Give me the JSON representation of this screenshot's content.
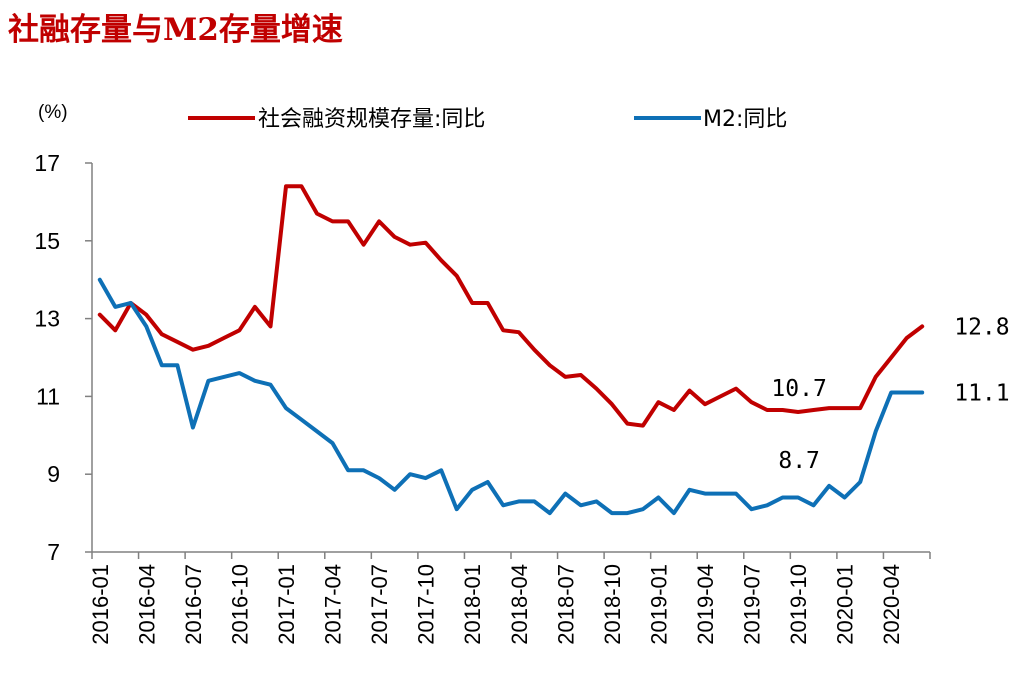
{
  "chart_data": {
    "type": "line",
    "title": "社融存量与M2存量增速",
    "unit": "(%)",
    "xlabel": "",
    "ylabel": "(%)",
    "ylim": [
      7,
      17
    ],
    "yticks": [
      7,
      9,
      11,
      13,
      15,
      17
    ],
    "grid": false,
    "legend_position": "top",
    "colors": {
      "title": "#c00000",
      "series1": "#c00000",
      "series2": "#0e70b6",
      "axis": "#808080"
    },
    "x": [
      "2016-01",
      "2016-02",
      "2016-03",
      "2016-04",
      "2016-05",
      "2016-06",
      "2016-07",
      "2016-08",
      "2016-09",
      "2016-10",
      "2016-11",
      "2016-12",
      "2017-01",
      "2017-02",
      "2017-03",
      "2017-04",
      "2017-05",
      "2017-06",
      "2017-07",
      "2017-08",
      "2017-09",
      "2017-10",
      "2017-11",
      "2017-12",
      "2018-01",
      "2018-02",
      "2018-03",
      "2018-04",
      "2018-05",
      "2018-06",
      "2018-07",
      "2018-08",
      "2018-09",
      "2018-10",
      "2018-11",
      "2018-12",
      "2019-01",
      "2019-02",
      "2019-03",
      "2019-04",
      "2019-05",
      "2019-06",
      "2019-07",
      "2019-08",
      "2019-09",
      "2019-10",
      "2019-11",
      "2019-12",
      "2020-01",
      "2020-02",
      "2020-03",
      "2020-04",
      "2020-05",
      "2020-06"
    ],
    "xtick_labels": [
      "2016-01",
      "2016-04",
      "2016-07",
      "2016-10",
      "2017-01",
      "2017-04",
      "2017-07",
      "2017-10",
      "2018-01",
      "2018-04",
      "2018-07",
      "2018-10",
      "2019-01",
      "2019-04",
      "2019-07",
      "2019-10",
      "2020-01",
      "2020-04"
    ],
    "xtick_indices": [
      0,
      3,
      6,
      9,
      12,
      15,
      18,
      21,
      24,
      27,
      30,
      33,
      36,
      39,
      42,
      45,
      48,
      51
    ],
    "series": [
      {
        "name": "社会融资规模存量:同比",
        "values": [
          13.1,
          12.7,
          13.4,
          13.1,
          12.6,
          12.4,
          12.2,
          12.3,
          12.5,
          12.7,
          13.3,
          12.8,
          16.4,
          16.4,
          15.7,
          15.5,
          15.5,
          14.9,
          15.5,
          15.1,
          14.9,
          14.95,
          14.5,
          14.1,
          13.4,
          13.4,
          12.7,
          12.65,
          12.2,
          11.8,
          11.5,
          11.55,
          11.2,
          10.8,
          10.3,
          10.25,
          10.85,
          10.65,
          11.15,
          10.8,
          11.0,
          11.2,
          10.85,
          10.65,
          10.65,
          10.6,
          10.65,
          10.7,
          10.7,
          10.7,
          11.5,
          12.0,
          12.5,
          12.8
        ]
      },
      {
        "name": "M2:同比",
        "values": [
          14.0,
          13.3,
          13.4,
          12.8,
          11.8,
          11.8,
          10.2,
          11.4,
          11.5,
          11.6,
          11.4,
          11.3,
          10.7,
          10.4,
          10.1,
          9.8,
          9.1,
          9.1,
          8.9,
          8.6,
          9.0,
          8.9,
          9.1,
          8.1,
          8.6,
          8.8,
          8.2,
          8.3,
          8.3,
          8.0,
          8.5,
          8.2,
          8.3,
          8.0,
          8.0,
          8.1,
          8.4,
          8.0,
          8.6,
          8.5,
          8.5,
          8.5,
          8.1,
          8.2,
          8.4,
          8.4,
          8.2,
          8.7,
          8.4,
          8.8,
          10.1,
          11.1,
          11.1,
          11.1
        ]
      }
    ],
    "annotations": [
      {
        "text": "12.8",
        "series": 0,
        "index": 53
      },
      {
        "text": "10.7",
        "series": 0,
        "index": 47
      },
      {
        "text": "8.7",
        "series": 1,
        "index": 47
      },
      {
        "text": "11.1",
        "series": 1,
        "index": 53
      }
    ]
  }
}
